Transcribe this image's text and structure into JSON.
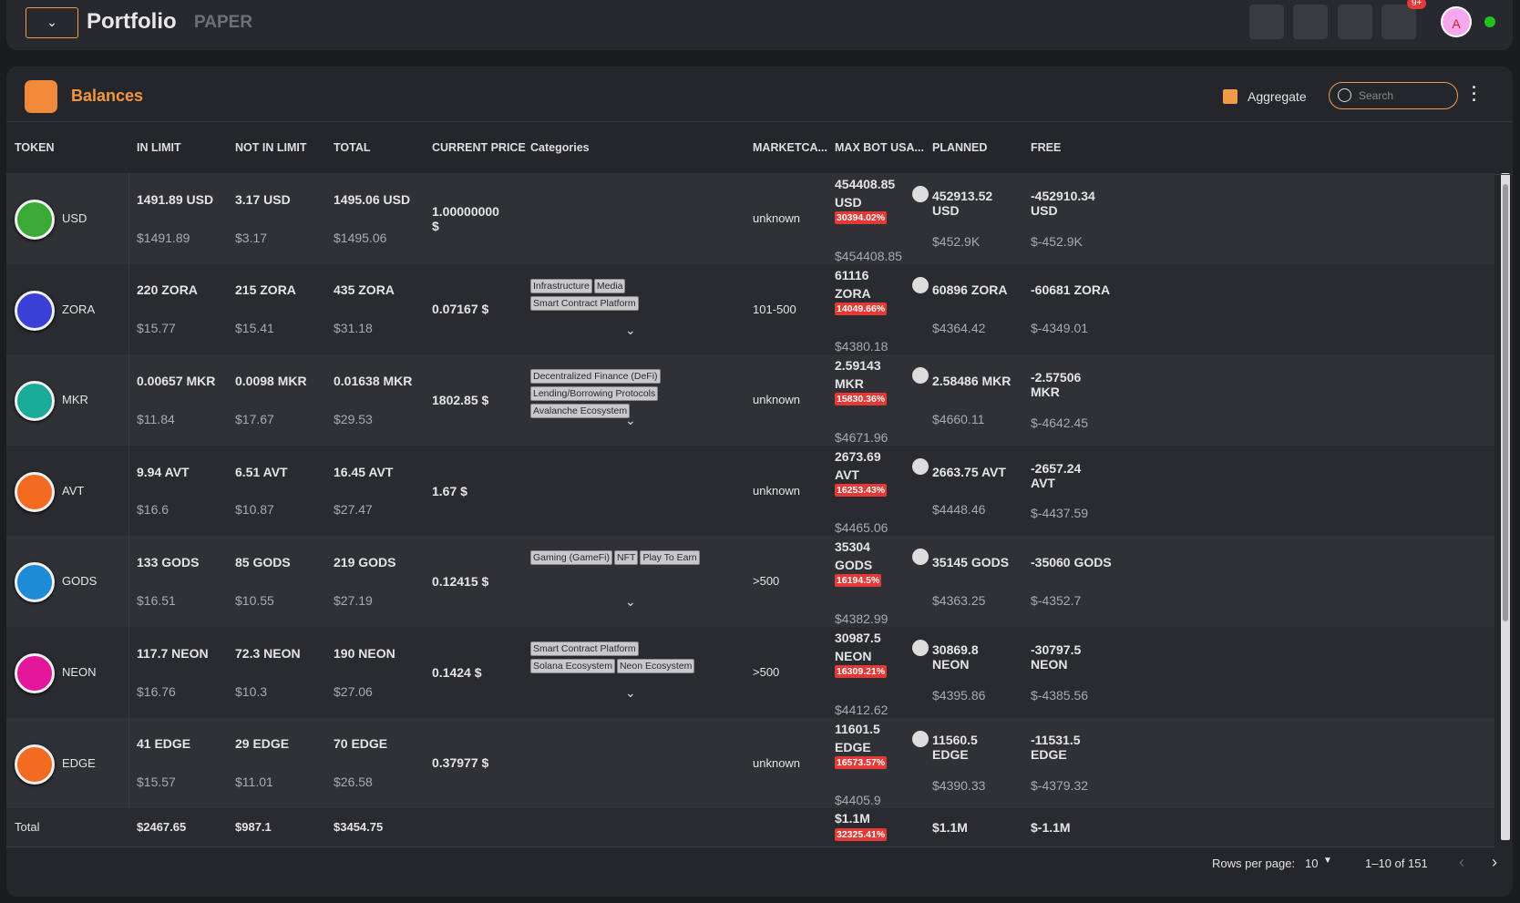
{
  "header": {
    "title": "Portfolio",
    "mode": "PAPER",
    "badge": "9+",
    "avatar": "A"
  },
  "panel": {
    "title": "Balances",
    "aggregate": "Aggregate",
    "search": "Search"
  },
  "table": {
    "columns": [
      "TOKEN",
      "IN LIMIT",
      "NOT IN LIMIT",
      "TOTAL",
      "CURRENT PRICE",
      "Categories",
      "MARKETCA...",
      "MAX BOT USA...",
      "PLANNED",
      "FREE"
    ],
    "rows": [
      {
        "token": "USD",
        "icon_color": "#3aa935",
        "in_limit": [
          "1491.89 USD",
          "$1491.89"
        ],
        "not_in_limit": [
          "3.17 USD",
          "$3.17"
        ],
        "total": [
          "1495.06 USD",
          "$1495.06"
        ],
        "price": "1.00000000 $",
        "categories": [],
        "marketcap": "unknown",
        "max_bot": [
          "454408.85 USD",
          "30394.02%",
          "$454408.85"
        ],
        "planned": [
          "452913.52 USD",
          "$452.9K"
        ],
        "free": [
          "-452910.34 USD",
          "$-452.9K"
        ]
      },
      {
        "token": "ZORA",
        "icon_color": "#3a3fd6",
        "in_limit": [
          "220 ZORA",
          "$15.77"
        ],
        "not_in_limit": [
          "215 ZORA",
          "$15.41"
        ],
        "total": [
          "435 ZORA",
          "$31.18"
        ],
        "price": "0.07167 $",
        "categories": [
          "Infrastructure",
          "Media",
          "Smart Contract Platform"
        ],
        "marketcap": "101-500",
        "max_bot": [
          "61116 ZORA",
          "14049.66%",
          "$4380.18"
        ],
        "planned": [
          "60896 ZORA",
          "$4364.42"
        ],
        "free": [
          "-60681 ZORA",
          "$-4349.01"
        ]
      },
      {
        "token": "MKR",
        "icon_color": "#1aab9b",
        "in_limit": [
          "0.00657 MKR",
          "$11.84"
        ],
        "not_in_limit": [
          "0.0098 MKR",
          "$17.67"
        ],
        "total": [
          "0.01638 MKR",
          "$29.53"
        ],
        "price": "1802.85 $",
        "categories": [
          "Decentralized Finance (DeFi)",
          "Lending/Borrowing Protocols",
          "Avalanche Ecosystem"
        ],
        "marketcap": "unknown",
        "max_bot": [
          "2.59143 MKR",
          "15830.36%",
          "$4671.96"
        ],
        "planned": [
          "2.58486 MKR",
          "$4660.11"
        ],
        "free": [
          "-2.57506 MKR",
          "$-4642.45"
        ]
      },
      {
        "token": "AVT",
        "icon_color": "#f26b21",
        "in_limit": [
          "9.94 AVT",
          "$16.6"
        ],
        "not_in_limit": [
          "6.51 AVT",
          "$10.87"
        ],
        "total": [
          "16.45 AVT",
          "$27.47"
        ],
        "price": "1.67 $",
        "categories": [],
        "marketcap": "unknown",
        "max_bot": [
          "2673.69 AVT",
          "16253.43%",
          "$4465.06"
        ],
        "planned": [
          "2663.75 AVT",
          "$4448.46"
        ],
        "free": [
          "-2657.24 AVT",
          "$-4437.59"
        ]
      },
      {
        "token": "GODS",
        "icon_color": "#1e8bd6",
        "in_limit": [
          "133 GODS",
          "$16.51"
        ],
        "not_in_limit": [
          "85 GODS",
          "$10.55"
        ],
        "total": [
          "219 GODS",
          "$27.19"
        ],
        "price": "0.12415 $",
        "categories": [
          "Gaming (GameFi)",
          "NFT",
          "Play To Earn"
        ],
        "marketcap": ">500",
        "max_bot": [
          "35304 GODS",
          "16194.5%",
          "$4382.99"
        ],
        "planned": [
          "35145 GODS",
          "$4363.25"
        ],
        "free": [
          "-35060 GODS",
          "$-4352.7"
        ]
      },
      {
        "token": "NEON",
        "icon_color": "#e3169b",
        "in_limit": [
          "117.7 NEON",
          "$16.76"
        ],
        "not_in_limit": [
          "72.3 NEON",
          "$10.3"
        ],
        "total": [
          "190 NEON",
          "$27.06"
        ],
        "price": "0.1424 $",
        "categories": [
          "Smart Contract Platform",
          "Solana Ecosystem",
          "Neon Ecosystem"
        ],
        "marketcap": ">500",
        "max_bot": [
          "30987.5 NEON",
          "16309.21%",
          "$4412.62"
        ],
        "planned": [
          "30869.8 NEON",
          "$4395.86"
        ],
        "free": [
          "-30797.5 NEON",
          "$-4385.56"
        ]
      },
      {
        "token": "EDGE",
        "icon_color": "#f26b21",
        "in_limit": [
          "41 EDGE",
          "$15.57"
        ],
        "not_in_limit": [
          "29 EDGE",
          "$11.01"
        ],
        "total": [
          "70 EDGE",
          "$26.58"
        ],
        "price": "0.37977 $",
        "categories": [],
        "marketcap": "unknown",
        "max_bot": [
          "11601.5 EDGE",
          "16573.57%",
          "$4405.9"
        ],
        "planned": [
          "11560.5 EDGE",
          "$4390.33"
        ],
        "free": [
          "-11531.5 EDGE",
          "$-4379.32"
        ]
      }
    ],
    "total": {
      "label": "Total",
      "in_limit": "$2467.65",
      "not_in_limit": "$987.1",
      "total": "$3454.75",
      "max_bot": [
        "$1.1M",
        "32325.41%"
      ],
      "planned": "$1.1M",
      "free": "$-1.1M"
    }
  },
  "footer": {
    "rows_per_page": "Rows per page:",
    "page_size": "10",
    "range": "1–10 of 151"
  }
}
